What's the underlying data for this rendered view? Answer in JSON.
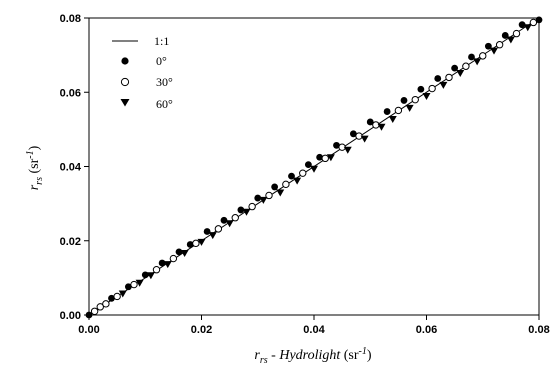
{
  "chart_data": {
    "type": "scatter",
    "xlabel": "r_rs - Hydrolight (sr^-1)",
    "xlabel_parts": {
      "main": "r",
      "sub": "rs",
      "mid": " - Hydrolight ",
      "unit_open": "(sr",
      "unit_sup": "-1",
      "unit_close": ")"
    },
    "ylabel_parts": {
      "main": "r",
      "sub": "rs",
      "unit_open": "(sr",
      "unit_sup": "-1",
      "unit_close": ")"
    },
    "xlim": [
      0,
      0.08
    ],
    "ylim": [
      0,
      0.08
    ],
    "xticks": [
      "0.00",
      "0.02",
      "0.04",
      "0.06",
      "0.08"
    ],
    "yticks": [
      "0.00",
      "0.02",
      "0.04",
      "0.06",
      "0.08"
    ],
    "legend": {
      "placement": "top-left",
      "items": [
        {
          "label": "1:1",
          "marker": "line"
        },
        {
          "label": "0°",
          "marker": "filled-circle"
        },
        {
          "label": "30°",
          "marker": "open-circle"
        },
        {
          "label": "60°",
          "marker": "filled-triangle-down"
        }
      ]
    },
    "reference_line": {
      "name": "1:1",
      "x": [
        0,
        0.08
      ],
      "y": [
        0,
        0.08
      ]
    },
    "series": [
      {
        "name": "0°",
        "marker": "filled-circle",
        "x": [
          0.0,
          0.004,
          0.007,
          0.01,
          0.013,
          0.016,
          0.018,
          0.021,
          0.024,
          0.027,
          0.03,
          0.033,
          0.036,
          0.039,
          0.041,
          0.044,
          0.047,
          0.05,
          0.053,
          0.056,
          0.059,
          0.062,
          0.065,
          0.068,
          0.071,
          0.074,
          0.077,
          0.08
        ],
        "y": [
          0.0,
          0.0045,
          0.0076,
          0.0108,
          0.014,
          0.017,
          0.019,
          0.0225,
          0.0255,
          0.0283,
          0.0315,
          0.0345,
          0.0374,
          0.0405,
          0.0425,
          0.0457,
          0.0488,
          0.052,
          0.0548,
          0.0578,
          0.0608,
          0.0637,
          0.0665,
          0.0695,
          0.0724,
          0.0753,
          0.0782,
          0.0795
        ]
      },
      {
        "name": "30°",
        "marker": "open-circle",
        "x": [
          0.001,
          0.002,
          0.003,
          0.005,
          0.008,
          0.012,
          0.015,
          0.019,
          0.023,
          0.026,
          0.029,
          0.032,
          0.035,
          0.038,
          0.042,
          0.045,
          0.048,
          0.051,
          0.055,
          0.058,
          0.061,
          0.064,
          0.067,
          0.07,
          0.073,
          0.076,
          0.079
        ],
        "y": [
          0.001,
          0.0022,
          0.003,
          0.005,
          0.0082,
          0.0122,
          0.0152,
          0.0193,
          0.0232,
          0.0262,
          0.0292,
          0.0322,
          0.0352,
          0.0382,
          0.0422,
          0.0452,
          0.0482,
          0.0512,
          0.0551,
          0.058,
          0.061,
          0.064,
          0.067,
          0.0698,
          0.0728,
          0.0758,
          0.0788
        ]
      },
      {
        "name": "60°",
        "marker": "filled-triangle-down",
        "x": [
          0.006,
          0.009,
          0.011,
          0.014,
          0.017,
          0.02,
          0.022,
          0.025,
          0.028,
          0.031,
          0.034,
          0.037,
          0.04,
          0.043,
          0.046,
          0.049,
          0.052,
          0.054,
          0.057,
          0.06,
          0.063,
          0.066,
          0.069,
          0.072,
          0.075,
          0.078
        ],
        "y": [
          0.0058,
          0.0087,
          0.0107,
          0.0137,
          0.0167,
          0.0197,
          0.0215,
          0.0247,
          0.0278,
          0.031,
          0.033,
          0.0362,
          0.0394,
          0.0425,
          0.0445,
          0.0475,
          0.0507,
          0.0528,
          0.0558,
          0.059,
          0.062,
          0.0652,
          0.0683,
          0.0712,
          0.0742,
          0.0775
        ]
      }
    ]
  }
}
